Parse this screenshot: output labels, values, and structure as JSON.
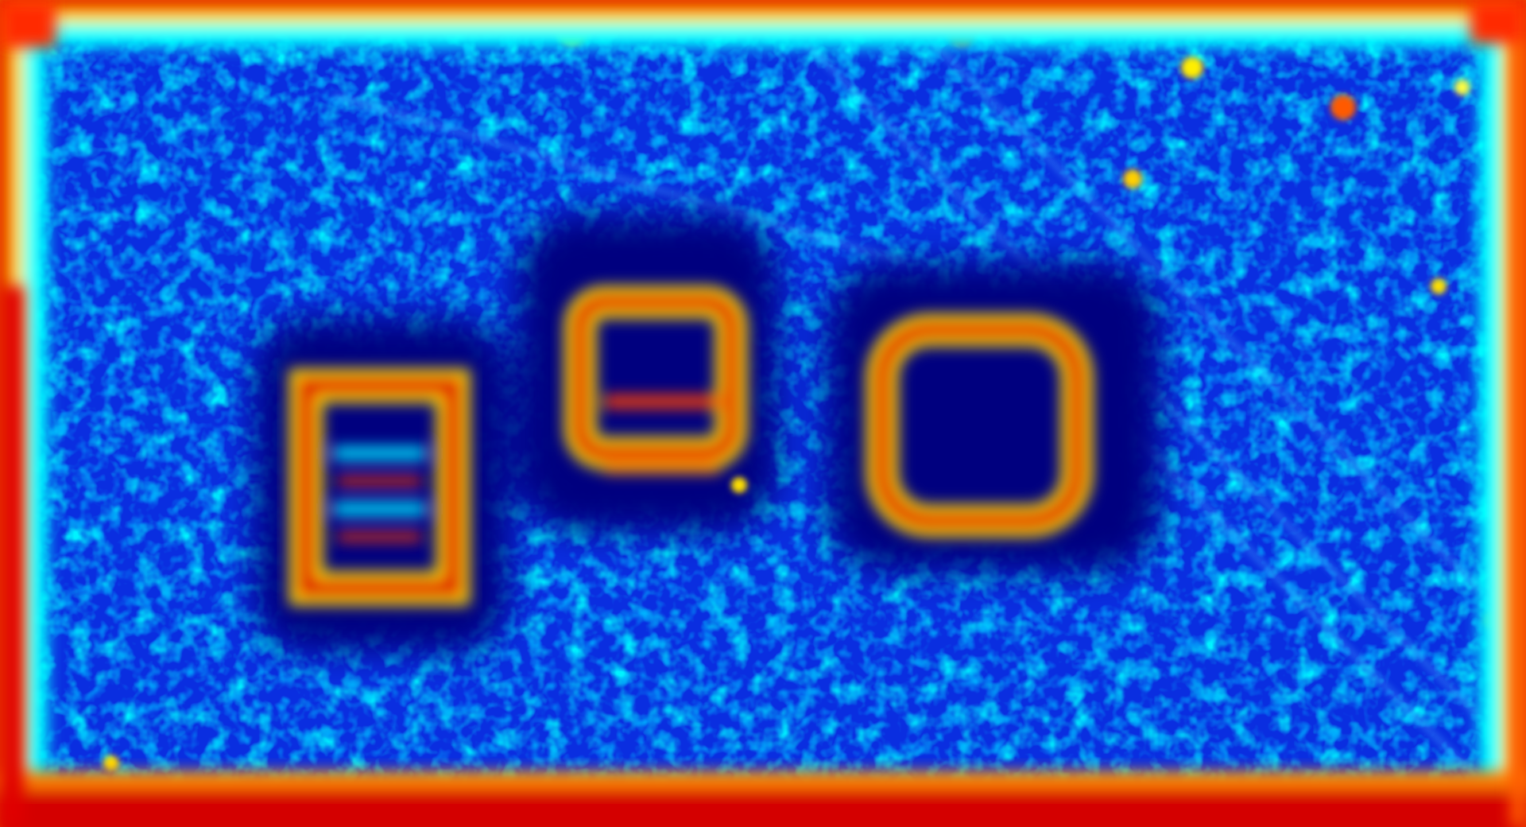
{
  "image": {
    "kind": "jet-colormap activation heatmap",
    "colormap": [
      "#00007f",
      "#0000ff",
      "#007fff",
      "#00ffff",
      "#7fff7f",
      "#ffff00",
      "#ff7f00",
      "#ff0000",
      "#7f0000"
    ],
    "background_color": "#1030d8",
    "hot_regions": [
      {
        "name": "left-rectangle-activation",
        "shape": "rectangle",
        "intensity": "high"
      },
      {
        "name": "middle-rectangle-activation",
        "shape": "rectangle",
        "intensity": "high"
      },
      {
        "name": "right-rectangle-activation",
        "shape": "rectangle",
        "intensity": "high"
      },
      {
        "name": "border-activation",
        "shape": "frame",
        "intensity": "high"
      }
    ]
  }
}
